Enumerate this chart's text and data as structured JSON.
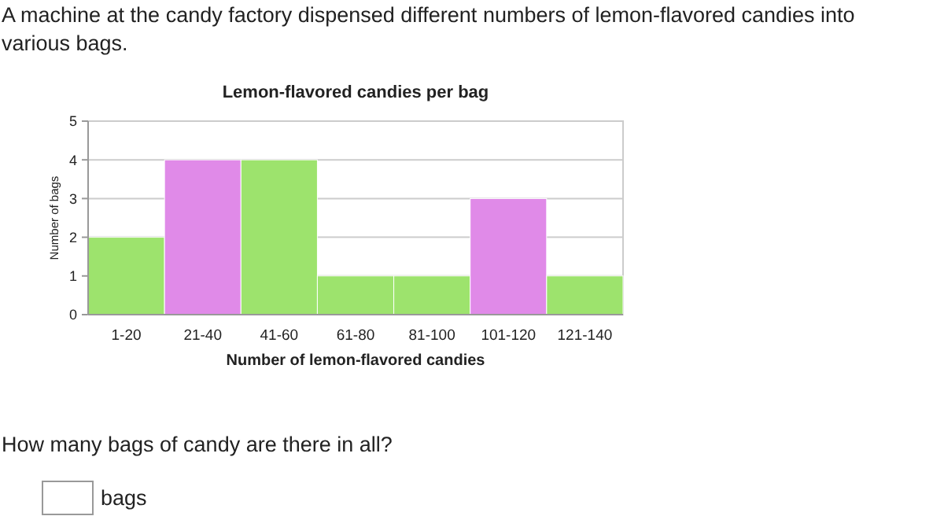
{
  "chart_data": {
    "type": "bar",
    "title": "Lemon-flavored candies per bag",
    "xlabel": "Number of lemon-flavored candies",
    "ylabel": "Number of bags",
    "categories": [
      "1-20",
      "21-40",
      "41-60",
      "61-80",
      "81-100",
      "101-120",
      "121-140"
    ],
    "values": [
      2,
      4,
      4,
      1,
      1,
      3,
      1
    ],
    "colors": [
      "#9de36d",
      "#e08ae8",
      "#9de36d",
      "#9de36d",
      "#9de36d",
      "#e08ae8",
      "#9de36d"
    ],
    "ylim": [
      0,
      5
    ],
    "yticks": [
      0,
      1,
      2,
      3,
      4,
      5
    ],
    "grid": "y",
    "annotations": [
      "A machine at the candy factory dispensed different numbers of lemon-flavored candies into various bags.",
      "How many bags of candy are there in all?",
      "bags"
    ]
  }
}
